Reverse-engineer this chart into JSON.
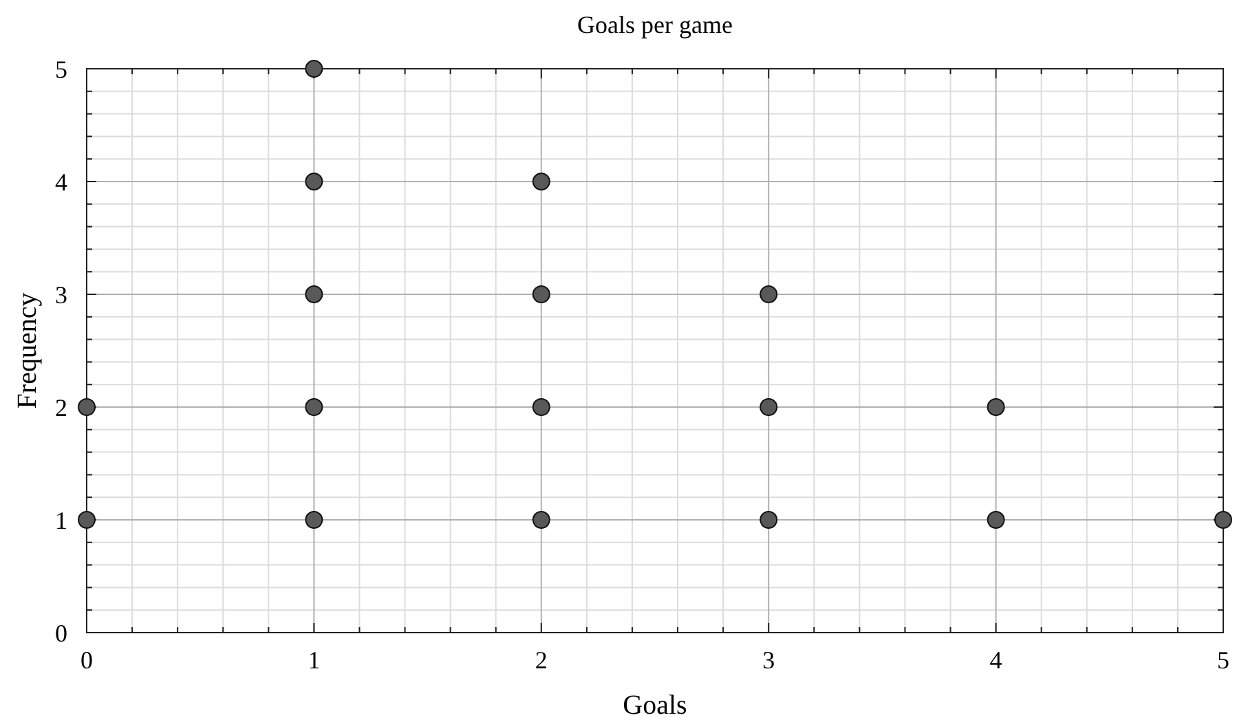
{
  "chart_data": {
    "type": "scatter",
    "title": "Goals per game",
    "xlabel": "Goals",
    "ylabel": "Frequency",
    "x": [
      0,
      0,
      1,
      1,
      1,
      1,
      1,
      2,
      2,
      2,
      2,
      3,
      3,
      3,
      4,
      4,
      5
    ],
    "series": [
      {
        "color": "#595959",
        "values": [
          1,
          2,
          1,
          2,
          3,
          4,
          5,
          1,
          2,
          3,
          4,
          1,
          2,
          3,
          1,
          2,
          1
        ]
      }
    ],
    "xlim": [
      0,
      5
    ],
    "ylim": [
      0,
      5
    ],
    "xticks": [
      0,
      1,
      2,
      3,
      4,
      5
    ],
    "yticks": [
      0,
      1,
      2,
      3,
      4,
      5
    ],
    "grid": true,
    "marker": "circle"
  }
}
